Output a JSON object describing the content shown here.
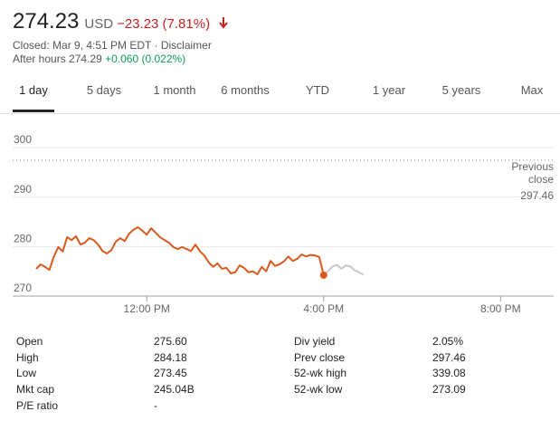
{
  "header": {
    "price": "274.23",
    "currency": "USD",
    "change": "−23.23 (7.81%)",
    "closed": "Closed: Mar 9, 4:51 PM EDT · Disclaimer",
    "after_hours_label": "After hours",
    "after_hours_price": "274.29",
    "after_hours_change": "+0.060 (0.022%)"
  },
  "tabs": [
    "1 day",
    "5 days",
    "1 month",
    "6 months",
    "YTD",
    "1 year",
    "5 years",
    "Max"
  ],
  "chart_data": {
    "type": "line",
    "xlim": [
      9.5,
      21.2
    ],
    "xticks": [
      {
        "value": 12,
        "label": "12:00 PM"
      },
      {
        "value": 16,
        "label": "4:00 PM"
      },
      {
        "value": 20,
        "label": "8:00 PM"
      }
    ],
    "ylim": [
      270,
      300
    ],
    "yticks": [
      270,
      280,
      290,
      300
    ],
    "grid": true,
    "previous_close_label": "Previous close",
    "previous_close": 297.46,
    "series": [
      {
        "color": "#d95a1f",
        "x": [
          9.5,
          9.6,
          9.7,
          9.8,
          9.9,
          10.0,
          10.1,
          10.2,
          10.3,
          10.4,
          10.5,
          10.6,
          10.7,
          10.8,
          10.9,
          11.0,
          11.1,
          11.2,
          11.3,
          11.4,
          11.5,
          11.6,
          11.7,
          11.8,
          11.9,
          12.0,
          12.1,
          12.2,
          12.3,
          12.4,
          12.5,
          12.6,
          12.7,
          12.8,
          12.9,
          13.0,
          13.1,
          13.2,
          13.3,
          13.4,
          13.5,
          13.6,
          13.7,
          13.8,
          13.9,
          14.0,
          14.1,
          14.2,
          14.3,
          14.4,
          14.5,
          14.6,
          14.7,
          14.8,
          14.9,
          15.0,
          15.1,
          15.2,
          15.3,
          15.4,
          15.5,
          15.6,
          15.7,
          15.8,
          15.9,
          16.0
        ],
        "values": [
          275.5,
          276.4,
          275.9,
          275.3,
          278.0,
          279.9,
          279.0,
          281.9,
          281.3,
          282.1,
          280.4,
          280.8,
          281.7,
          281.3,
          280.4,
          279.1,
          278.6,
          279.3,
          281.0,
          281.7,
          281.1,
          282.6,
          283.4,
          283.9,
          283.2,
          282.4,
          283.7,
          282.8,
          281.9,
          281.3,
          280.8,
          279.9,
          279.5,
          279.9,
          279.5,
          279.1,
          280.4,
          279.1,
          278.2,
          276.8,
          275.9,
          276.6,
          275.5,
          275.7,
          274.6,
          274.8,
          276.2,
          275.7,
          274.8,
          275.0,
          274.4,
          275.9,
          275.0,
          277.1,
          276.1,
          276.4,
          277.0,
          278.0,
          277.1,
          277.5,
          278.4,
          278.0,
          278.3,
          278.2,
          277.9,
          274.23
        ]
      },
      {
        "color": "#c8c8c8",
        "x": [
          16.0,
          16.1,
          16.2,
          16.3,
          16.4,
          16.5,
          16.6,
          16.7,
          16.8,
          16.9
        ],
        "values": [
          274.23,
          275.0,
          276.0,
          276.3,
          275.5,
          276.2,
          276.0,
          275.2,
          274.8,
          274.29
        ]
      }
    ]
  },
  "stats": {
    "left": [
      {
        "label": "Open",
        "value": "275.60"
      },
      {
        "label": "High",
        "value": "284.18"
      },
      {
        "label": "Low",
        "value": "273.45"
      },
      {
        "label": "Mkt cap",
        "value": "245.04B"
      },
      {
        "label": "P/E ratio",
        "value": "-"
      }
    ],
    "right": [
      {
        "label": "Div yield",
        "value": "2.05%"
      },
      {
        "label": "Prev close",
        "value": "297.46"
      },
      {
        "label": "52-wk high",
        "value": "339.08"
      },
      {
        "label": "52-wk low",
        "value": "273.09"
      }
    ]
  }
}
